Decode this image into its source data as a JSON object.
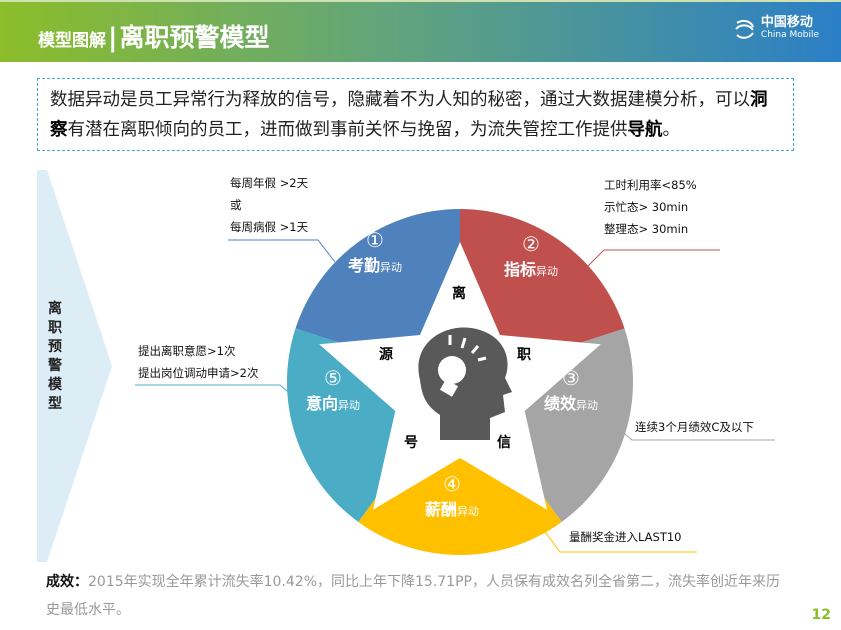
{
  "header": {
    "subtitle": "模型图解",
    "separator": "|",
    "title": "离职预警模型",
    "logo_cn": "中国移动",
    "logo_en": "China Mobile"
  },
  "intro": {
    "part1": "数据异动是员工异常行为释放的信号，隐藏着不为人知的秘密，通过大数据建模分析，可以",
    "bold1": "洞察",
    "part2": "有潜在离职倾向的员工，进而做到事前关怀与挽留，为流失管控工作提供",
    "bold2": "导航",
    "end": "。"
  },
  "side_label": "离职预警模型",
  "segments": [
    {
      "num": "①",
      "name": "考勤",
      "suffix": "异动",
      "color": "#4f81bd"
    },
    {
      "num": "②",
      "name": "指标",
      "suffix": "异动",
      "color": "#c0504d"
    },
    {
      "num": "③",
      "name": "绩效",
      "suffix": "异动",
      "color": "#a5a5a5"
    },
    {
      "num": "④",
      "name": "薪酬",
      "suffix": "异动",
      "color": "#ffc000"
    },
    {
      "num": "⑤",
      "name": "意向",
      "suffix": "异动",
      "color": "#4bacc6"
    }
  ],
  "star_text": [
    "离",
    "职",
    "信",
    "号",
    "源"
  ],
  "callouts": {
    "c1": [
      "每周年假 >2天",
      "或",
      "每周病假 >1天"
    ],
    "c2": [
      "工时利用率<85%",
      "示忙态> 30min",
      "整理态> 30min"
    ],
    "c3": [
      "连续3个月绩效C及以下"
    ],
    "c4": [
      "量酬奖金进入LAST10"
    ],
    "c5": [
      "提出离职意愿>1次",
      "提出岗位调动申请>2次"
    ]
  },
  "result": {
    "label": "成效：",
    "text": "2015年实现全年累计流失率10.42%，同比上年下降15.71PP，人员保有成效名列全省第二，流失率创近年来历史最低水平。"
  },
  "page_number": "12"
}
